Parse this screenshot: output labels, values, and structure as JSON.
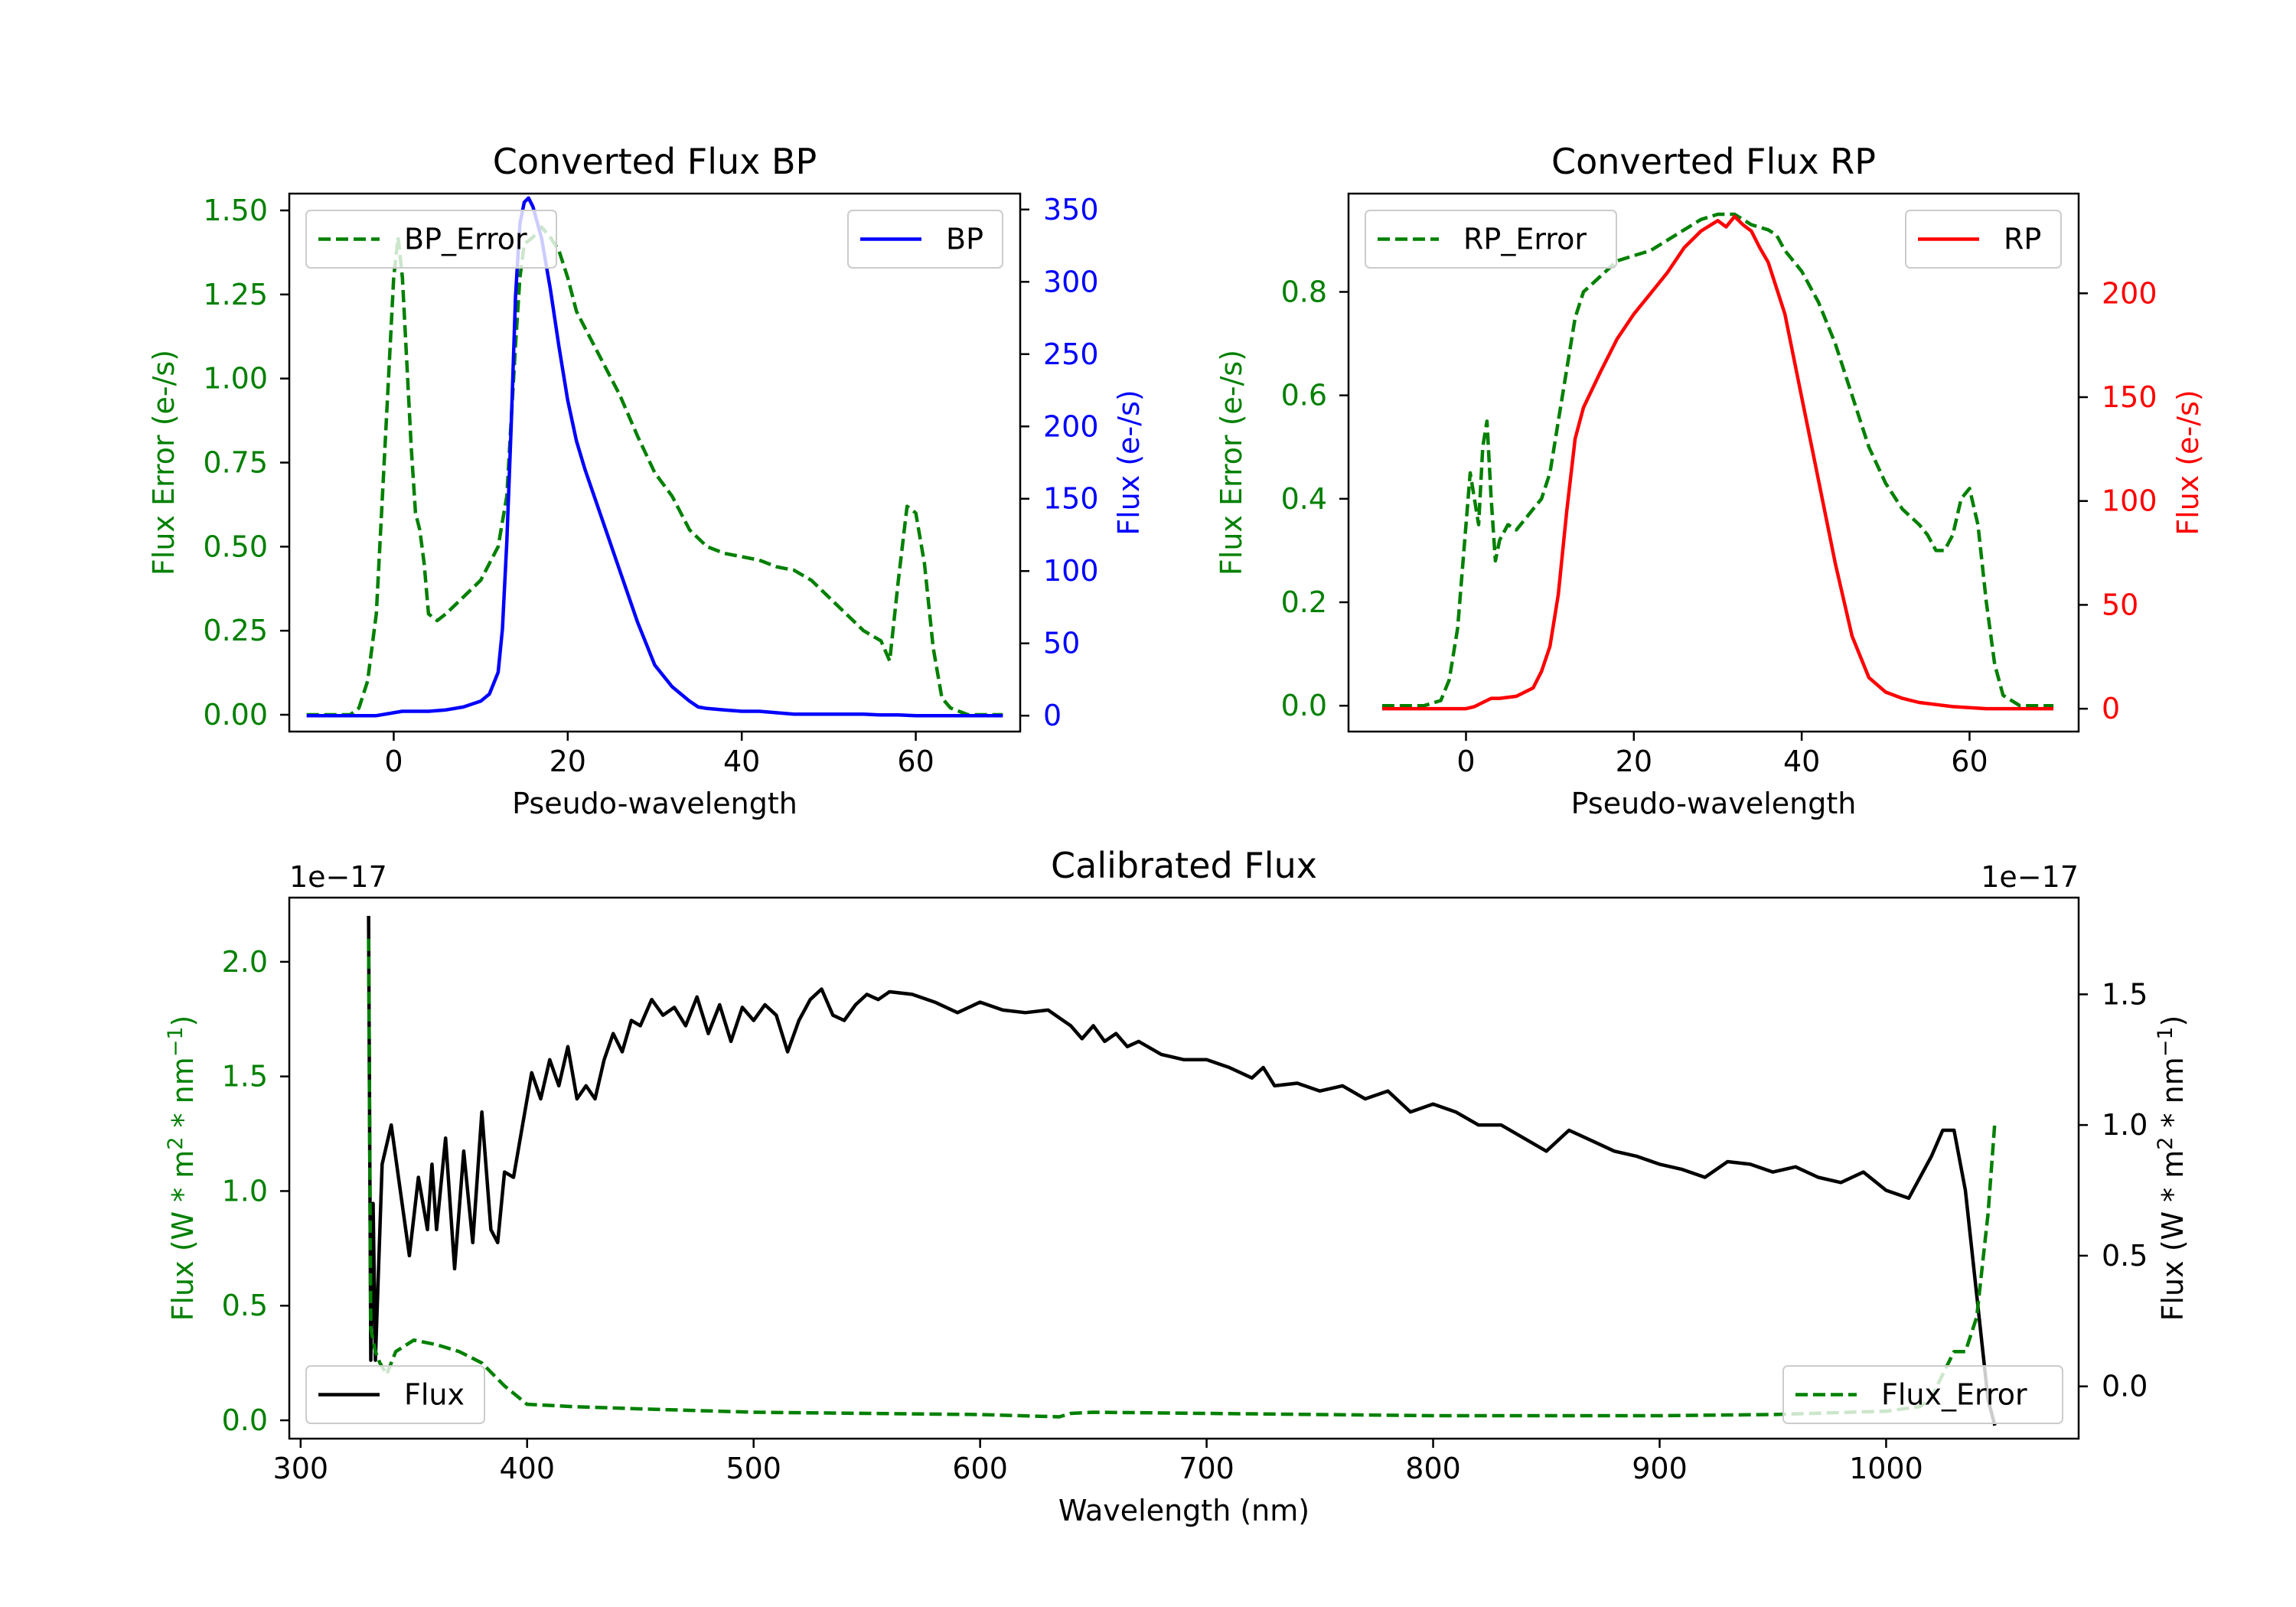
{
  "chart_data": [
    {
      "id": "bp",
      "type": "line",
      "title": "Converted Flux BP",
      "xlabel": "Pseudo-wavelength",
      "xlim": [
        -12,
        72
      ],
      "xticks": [
        0,
        20,
        40,
        60
      ],
      "left_axis": {
        "label": "Flux Error (e-/s)",
        "color": "#008000",
        "ylim": [
          -0.05,
          1.55
        ],
        "ticks": [
          0.0,
          0.25,
          0.5,
          0.75,
          1.0,
          1.25,
          1.5
        ],
        "tick_labels": [
          "0.00",
          "0.25",
          "0.50",
          "0.75",
          "1.00",
          "1.25",
          "1.50"
        ]
      },
      "right_axis": {
        "label": "Flux (e-/s)",
        "color": "#0000ff",
        "ylim": [
          -11,
          361
        ],
        "ticks": [
          0,
          50,
          100,
          150,
          200,
          250,
          300,
          350
        ],
        "tick_labels": [
          "0",
          "50",
          "100",
          "150",
          "200",
          "250",
          "300",
          "350"
        ]
      },
      "series": [
        {
          "name": "BP_Error",
          "axis": "left",
          "color": "#008000",
          "dash": true,
          "x": [
            -10,
            -5,
            -4,
            -3,
            -2,
            -1,
            0,
            0.5,
            1,
            2,
            2.5,
            3,
            3.5,
            4,
            5,
            6,
            8,
            10,
            12,
            13,
            14,
            14.5,
            15,
            16,
            17,
            18,
            19,
            20,
            21,
            22,
            24,
            26,
            28,
            30,
            32,
            34,
            36,
            38,
            40,
            42,
            44,
            46,
            48,
            50,
            52,
            54,
            56,
            57,
            58,
            59,
            60,
            61,
            62,
            63,
            64,
            65,
            66,
            68,
            70
          ],
          "y": [
            0,
            0,
            0.02,
            0.1,
            0.3,
            0.8,
            1.3,
            1.42,
            1.3,
            0.8,
            0.6,
            0.55,
            0.45,
            0.3,
            0.28,
            0.3,
            0.35,
            0.4,
            0.5,
            0.65,
            1.1,
            1.3,
            1.4,
            1.42,
            1.45,
            1.42,
            1.38,
            1.3,
            1.2,
            1.15,
            1.05,
            0.95,
            0.83,
            0.72,
            0.65,
            0.55,
            0.5,
            0.48,
            0.47,
            0.46,
            0.44,
            0.43,
            0.4,
            0.35,
            0.3,
            0.25,
            0.22,
            0.16,
            0.4,
            0.62,
            0.6,
            0.45,
            0.2,
            0.05,
            0.02,
            0.01,
            0,
            0,
            0
          ]
        },
        {
          "name": "BP",
          "axis": "right",
          "color": "#0000ff",
          "dash": false,
          "x": [
            -10,
            -5,
            -2,
            0,
            1,
            2,
            4,
            6,
            8,
            10,
            11,
            12,
            12.5,
            13,
            13.5,
            14,
            14.5,
            15,
            15.5,
            16,
            17,
            18,
            19,
            20,
            21,
            22,
            24,
            26,
            28,
            30,
            32,
            34,
            35,
            36,
            38,
            40,
            42,
            44,
            46,
            48,
            50,
            52,
            54,
            56,
            58,
            60,
            62,
            65,
            70
          ],
          "y": [
            0,
            0,
            0,
            2,
            3,
            3,
            3,
            4,
            6,
            10,
            15,
            30,
            60,
            120,
            200,
            290,
            340,
            355,
            358,
            352,
            330,
            295,
            255,
            218,
            190,
            170,
            135,
            100,
            65,
            35,
            20,
            10,
            6,
            5,
            4,
            3,
            3,
            2,
            1,
            1,
            1,
            1,
            1,
            0.5,
            0.5,
            0,
            0,
            0,
            0
          ]
        }
      ],
      "legends": [
        {
          "label": "BP_Error",
          "position": "upper-left"
        },
        {
          "label": "BP",
          "position": "upper-right"
        }
      ]
    },
    {
      "id": "rp",
      "type": "line",
      "title": "Converted Flux RP",
      "xlabel": "Pseudo-wavelength",
      "xlim": [
        -14,
        73
      ],
      "xticks": [
        0,
        20,
        40,
        60
      ],
      "left_axis": {
        "label": "Flux Error (e-/s)",
        "color": "#008000",
        "ylim": [
          -0.05,
          0.99
        ],
        "ticks": [
          0.0,
          0.2,
          0.4,
          0.6,
          0.8
        ],
        "tick_labels": [
          "0.0",
          "0.2",
          "0.4",
          "0.6",
          "0.8"
        ]
      },
      "right_axis": {
        "label": "Flux (e-/s)",
        "color": "#ff0000",
        "ylim": [
          -11,
          248
        ],
        "ticks": [
          0,
          50,
          100,
          150,
          200
        ],
        "tick_labels": [
          "0",
          "50",
          "100",
          "150",
          "200"
        ]
      },
      "series": [
        {
          "name": "RP_Error",
          "axis": "left",
          "color": "#008000",
          "dash": true,
          "x": [
            -10,
            -5,
            -3,
            -2,
            -1,
            0,
            0.5,
            1,
            1.5,
            2,
            2.5,
            3,
            3.5,
            4,
            5,
            6,
            7,
            8,
            9,
            10,
            11,
            12,
            13,
            14,
            16,
            18,
            20,
            22,
            24,
            26,
            28,
            30,
            32,
            34,
            36,
            37,
            38,
            40,
            42,
            44,
            46,
            48,
            50,
            52,
            54,
            55,
            56,
            57,
            58,
            59,
            60,
            61,
            62,
            63,
            64,
            65,
            66,
            68,
            70
          ],
          "y": [
            0,
            0,
            0.01,
            0.05,
            0.15,
            0.35,
            0.45,
            0.4,
            0.35,
            0.5,
            0.55,
            0.4,
            0.28,
            0.32,
            0.35,
            0.34,
            0.36,
            0.38,
            0.4,
            0.45,
            0.55,
            0.65,
            0.75,
            0.8,
            0.83,
            0.86,
            0.87,
            0.88,
            0.9,
            0.92,
            0.94,
            0.95,
            0.95,
            0.93,
            0.92,
            0.91,
            0.88,
            0.84,
            0.78,
            0.7,
            0.6,
            0.5,
            0.43,
            0.38,
            0.35,
            0.33,
            0.3,
            0.3,
            0.33,
            0.4,
            0.42,
            0.35,
            0.2,
            0.08,
            0.02,
            0.01,
            0,
            0,
            0
          ]
        },
        {
          "name": "RP",
          "axis": "right",
          "color": "#ff0000",
          "dash": false,
          "x": [
            -10,
            -5,
            0,
            1,
            2,
            3,
            4,
            6,
            8,
            9,
            10,
            11,
            12,
            13,
            14,
            16,
            18,
            20,
            22,
            24,
            26,
            28,
            30,
            31,
            32,
            33,
            34,
            35,
            36,
            38,
            40,
            42,
            44,
            46,
            48,
            50,
            52,
            54,
            56,
            58,
            60,
            62,
            65,
            70
          ],
          "y": [
            0,
            0,
            0,
            1,
            3,
            5,
            5,
            6,
            10,
            18,
            30,
            55,
            95,
            130,
            145,
            162,
            178,
            190,
            200,
            210,
            222,
            230,
            235,
            232,
            237,
            233,
            230,
            222,
            215,
            190,
            150,
            110,
            70,
            35,
            15,
            8,
            5,
            3,
            2,
            1,
            0.5,
            0,
            0,
            0
          ]
        }
      ],
      "legends": [
        {
          "label": "RP_Error",
          "position": "upper-left"
        },
        {
          "label": "RP",
          "position": "upper-right"
        }
      ]
    },
    {
      "id": "calibrated",
      "type": "line",
      "title": "Calibrated Flux",
      "xlabel": "Wavelength (nm)",
      "xlim": [
        295,
        1085
      ],
      "xticks": [
        300,
        400,
        500,
        600,
        700,
        800,
        900,
        1000
      ],
      "left_axis": {
        "label_parts": [
          "Flux (W * m",
          "2",
          " * nm",
          "−1",
          ")"
        ],
        "color": "#008000",
        "offset_text": "1e−17",
        "ylim": [
          -0.08,
          2.28
        ],
        "ticks": [
          0.0,
          0.5,
          1.0,
          1.5,
          2.0
        ],
        "tick_labels": [
          "0.0",
          "0.5",
          "1.0",
          "1.5",
          "2.0"
        ]
      },
      "right_axis": {
        "label_parts": [
          "Flux (W * m",
          "2",
          " * nm",
          "−1",
          ")"
        ],
        "color": "#000000",
        "offset_text": "1e−17",
        "ylim": [
          -0.2,
          1.87
        ],
        "ticks": [
          0.0,
          0.5,
          1.0,
          1.5
        ],
        "tick_labels": [
          "0.0",
          "0.5",
          "1.0",
          "1.5"
        ]
      },
      "series": [
        {
          "name": "Flux",
          "axis": "right",
          "color": "#000000",
          "dash": false,
          "x": [
            330,
            331,
            332,
            333,
            336,
            340,
            344,
            348,
            352,
            356,
            358,
            360,
            364,
            368,
            372,
            376,
            380,
            384,
            387,
            390,
            394,
            398,
            402,
            406,
            410,
            414,
            418,
            422,
            426,
            430,
            434,
            438,
            442,
            446,
            450,
            455,
            460,
            465,
            470,
            475,
            480,
            485,
            490,
            495,
            500,
            505,
            510,
            515,
            520,
            525,
            530,
            535,
            540,
            545,
            550,
            555,
            560,
            570,
            580,
            590,
            600,
            610,
            620,
            630,
            640,
            645,
            650,
            655,
            660,
            665,
            670,
            680,
            690,
            700,
            710,
            720,
            725,
            730,
            740,
            750,
            760,
            770,
            780,
            790,
            800,
            810,
            820,
            830,
            840,
            850,
            860,
            870,
            880,
            890,
            900,
            910,
            920,
            930,
            940,
            950,
            960,
            970,
            980,
            990,
            1000,
            1010,
            1020,
            1025,
            1030,
            1035,
            1040,
            1045,
            1048
          ],
          "y": [
            1.8,
            0.1,
            0.7,
            0.1,
            0.85,
            1.0,
            0.75,
            0.5,
            0.8,
            0.6,
            0.85,
            0.6,
            0.95,
            0.45,
            0.9,
            0.55,
            1.05,
            0.6,
            0.55,
            0.82,
            0.8,
            1.0,
            1.2,
            1.1,
            1.25,
            1.15,
            1.3,
            1.1,
            1.15,
            1.1,
            1.25,
            1.35,
            1.28,
            1.4,
            1.38,
            1.48,
            1.42,
            1.45,
            1.38,
            1.49,
            1.35,
            1.46,
            1.32,
            1.45,
            1.4,
            1.46,
            1.42,
            1.28,
            1.4,
            1.48,
            1.52,
            1.42,
            1.4,
            1.46,
            1.5,
            1.48,
            1.51,
            1.5,
            1.47,
            1.43,
            1.47,
            1.44,
            1.43,
            1.44,
            1.38,
            1.33,
            1.38,
            1.32,
            1.35,
            1.3,
            1.32,
            1.27,
            1.25,
            1.25,
            1.22,
            1.18,
            1.22,
            1.15,
            1.16,
            1.13,
            1.15,
            1.1,
            1.13,
            1.05,
            1.08,
            1.05,
            1.0,
            1.0,
            0.95,
            0.9,
            0.98,
            0.94,
            0.9,
            0.88,
            0.85,
            0.83,
            0.8,
            0.86,
            0.85,
            0.82,
            0.84,
            0.8,
            0.78,
            0.82,
            0.75,
            0.72,
            0.88,
            0.98,
            0.98,
            0.75,
            0.35,
            -0.05,
            -0.15
          ]
        },
        {
          "name": "Flux_Error",
          "axis": "left",
          "color": "#008000",
          "dash": true,
          "x": [
            330,
            331,
            333,
            335,
            338,
            342,
            350,
            360,
            370,
            380,
            390,
            400,
            420,
            450,
            500,
            550,
            600,
            635,
            640,
            650,
            700,
            750,
            800,
            850,
            900,
            950,
            1000,
            1015,
            1020,
            1025,
            1030,
            1035,
            1040,
            1045,
            1048
          ],
          "y": [
            2.1,
            0.4,
            0.3,
            0.25,
            0.2,
            0.3,
            0.35,
            0.33,
            0.3,
            0.25,
            0.15,
            0.07,
            0.06,
            0.05,
            0.035,
            0.03,
            0.025,
            0.015,
            0.03,
            0.035,
            0.03,
            0.025,
            0.02,
            0.02,
            0.02,
            0.025,
            0.04,
            0.06,
            0.1,
            0.2,
            0.3,
            0.3,
            0.45,
            0.9,
            1.3
          ]
        }
      ],
      "legends": [
        {
          "label": "Flux",
          "position": "lower-left"
        },
        {
          "label": "Flux_Error",
          "position": "lower-right"
        }
      ]
    }
  ]
}
